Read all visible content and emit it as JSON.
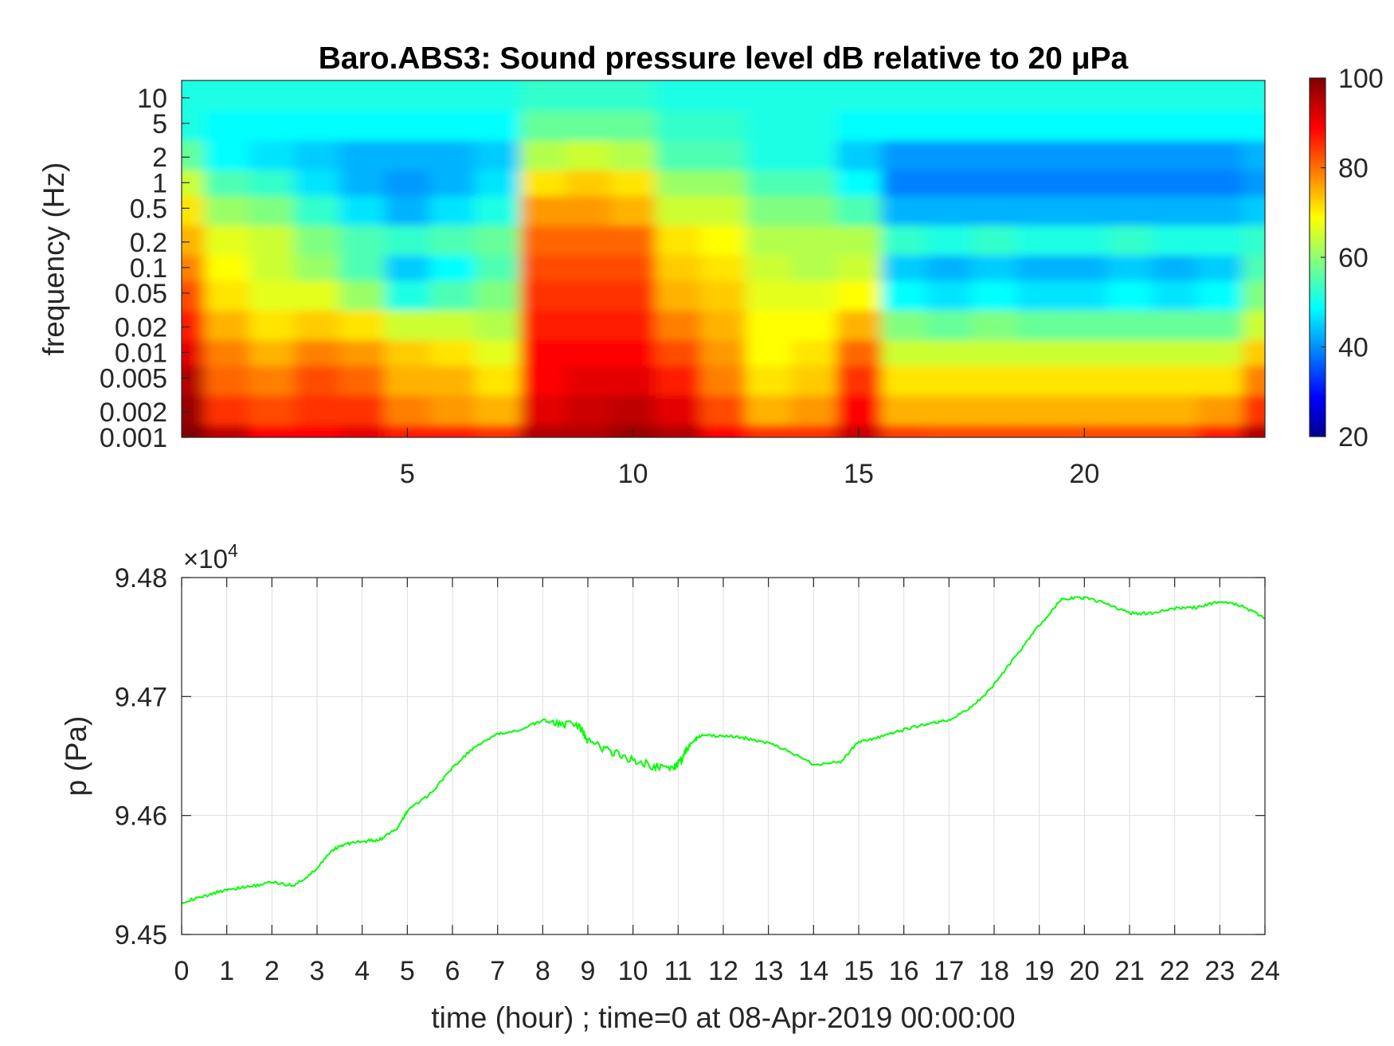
{
  "figure": {
    "title": "Baro.ABS3: Sound pressure level dB relative to 20 μPa"
  },
  "chart_data": [
    {
      "type": "heatmap",
      "title": "Baro.ABS3: Sound pressure level dB relative to 20 μPa",
      "ylabel": "frequency (Hz)",
      "y_scale": "log",
      "xlim": [
        0,
        24
      ],
      "x_ticks": [
        5,
        10,
        15,
        20
      ],
      "y_ticks": [
        {
          "value": 10,
          "label": "10"
        },
        {
          "value": 5,
          "label": "5"
        },
        {
          "value": 2,
          "label": "2"
        },
        {
          "value": 1,
          "label": "1"
        },
        {
          "value": 0.5,
          "label": "0.5"
        },
        {
          "value": 0.2,
          "label": "0.2"
        },
        {
          "value": 0.1,
          "label": "0.1"
        },
        {
          "value": 0.05,
          "label": "0.05"
        },
        {
          "value": 0.02,
          "label": "0.02"
        },
        {
          "value": 0.01,
          "label": "0.01"
        },
        {
          "value": 0.005,
          "label": "0.005"
        },
        {
          "value": 0.002,
          "label": "0.002"
        },
        {
          "value": 0.001,
          "label": "0.001"
        }
      ],
      "colorbar": {
        "min": 20,
        "max": 100,
        "ticks": [
          20,
          40,
          60,
          80,
          100
        ],
        "colormap": "jet"
      },
      "hours": [
        0,
        1,
        2,
        3,
        4,
        5,
        6,
        7,
        8,
        9,
        10,
        11,
        12,
        13,
        14,
        15,
        16,
        17,
        18,
        19,
        20,
        21,
        22,
        23,
        24
      ],
      "frequency_bands_hz": [
        0.001,
        0.002,
        0.005,
        0.01,
        0.02,
        0.05,
        0.1,
        0.2,
        0.5,
        1,
        2,
        5,
        10
      ],
      "approx_levels_db": [
        [
          100,
          95,
          90,
          90,
          92,
          88,
          88,
          86,
          96,
          96,
          98,
          96,
          90,
          86,
          86,
          94,
          85,
          84,
          84,
          84,
          84,
          84,
          84,
          88,
          96
        ],
        [
          98,
          86,
          84,
          86,
          86,
          80,
          78,
          76,
          92,
          94,
          95,
          92,
          84,
          76,
          78,
          90,
          76,
          76,
          76,
          76,
          76,
          76,
          76,
          78,
          86
        ],
        [
          96,
          82,
          80,
          84,
          82,
          76,
          76,
          72,
          90,
          92,
          92,
          88,
          80,
          72,
          74,
          86,
          72,
          72,
          72,
          72,
          72,
          72,
          72,
          72,
          80
        ],
        [
          92,
          80,
          76,
          80,
          78,
          74,
          72,
          68,
          90,
          90,
          90,
          84,
          78,
          70,
          72,
          82,
          66,
          66,
          66,
          66,
          66,
          66,
          66,
          66,
          74
        ],
        [
          88,
          76,
          72,
          74,
          72,
          66,
          66,
          64,
          88,
          88,
          88,
          80,
          76,
          70,
          70,
          76,
          60,
          58,
          60,
          58,
          58,
          58,
          58,
          58,
          66
        ],
        [
          84,
          72,
          68,
          68,
          62,
          52,
          56,
          60,
          86,
          86,
          86,
          76,
          74,
          68,
          68,
          70,
          50,
          48,
          50,
          48,
          48,
          50,
          48,
          50,
          60
        ],
        [
          80,
          70,
          66,
          62,
          56,
          46,
          50,
          56,
          84,
          84,
          84,
          74,
          72,
          66,
          64,
          66,
          46,
          44,
          46,
          44,
          44,
          46,
          44,
          46,
          56
        ],
        [
          76,
          68,
          66,
          60,
          56,
          54,
          56,
          58,
          82,
          82,
          82,
          72,
          70,
          64,
          64,
          64,
          54,
          52,
          54,
          52,
          52,
          54,
          52,
          52,
          54
        ],
        [
          72,
          62,
          60,
          54,
          48,
          44,
          48,
          52,
          78,
          78,
          76,
          66,
          66,
          60,
          60,
          56,
          44,
          44,
          44,
          44,
          44,
          44,
          44,
          44,
          46
        ],
        [
          66,
          56,
          54,
          48,
          44,
          42,
          44,
          48,
          72,
          74,
          72,
          62,
          62,
          56,
          56,
          50,
          40,
          40,
          40,
          40,
          40,
          40,
          40,
          40,
          42
        ],
        [
          58,
          50,
          48,
          46,
          44,
          44,
          44,
          46,
          64,
          66,
          64,
          56,
          56,
          52,
          52,
          46,
          42,
          42,
          42,
          42,
          42,
          42,
          42,
          42,
          44
        ],
        [
          52,
          50,
          50,
          50,
          50,
          50,
          50,
          50,
          58,
          58,
          58,
          54,
          54,
          52,
          52,
          50,
          50,
          50,
          50,
          50,
          50,
          50,
          50,
          50,
          50
        ],
        [
          52,
          52,
          52,
          52,
          52,
          52,
          52,
          52,
          54,
          54,
          54,
          52,
          52,
          52,
          52,
          52,
          52,
          52,
          52,
          52,
          52,
          52,
          52,
          52,
          52
        ]
      ]
    },
    {
      "type": "line",
      "xlabel": "time (hour) ; time=0 at 08-Apr-2019 00:00:00",
      "ylabel": "p (Pa)",
      "y_exponent_label": "×10",
      "y_exponent": "4",
      "xlim": [
        0,
        24
      ],
      "ylim": [
        94500,
        94800
      ],
      "x_ticks": [
        0,
        1,
        2,
        3,
        4,
        5,
        6,
        7,
        8,
        9,
        10,
        11,
        12,
        13,
        14,
        15,
        16,
        17,
        18,
        19,
        20,
        21,
        22,
        23,
        24
      ],
      "y_ticks": [
        {
          "value": 94500,
          "label": "9.45"
        },
        {
          "value": 94600,
          "label": "9.46"
        },
        {
          "value": 94700,
          "label": "9.47"
        },
        {
          "value": 94800,
          "label": "9.48"
        }
      ],
      "grid": true,
      "color": "#00ff00",
      "series": [
        {
          "x": [
            0,
            0.5,
            1.0,
            1.5,
            2.0,
            2.5,
            3.0,
            3.3,
            3.6,
            4.0,
            4.4,
            4.8,
            5.0,
            5.5,
            6.0,
            6.5,
            7.0,
            7.5,
            8.0,
            8.4,
            8.8,
            9.0,
            9.5,
            10.0,
            10.5,
            10.9,
            11.1,
            11.3,
            11.5,
            12.0,
            12.5,
            13.0,
            13.5,
            14.0,
            14.6,
            15.0,
            15.5,
            16.0,
            16.5,
            17.0,
            17.5,
            18.0,
            18.5,
            19.0,
            19.5,
            20.0,
            20.5,
            21.0,
            21.5,
            22.0,
            22.5,
            23.0,
            23.5,
            24.0
          ],
          "y": [
            94527,
            94532,
            94538,
            94540,
            94544,
            94541,
            94555,
            94570,
            94576,
            94578,
            94580,
            94590,
            94604,
            94618,
            94640,
            94658,
            94668,
            94672,
            94680,
            94677,
            94675,
            94663,
            94654,
            94647,
            94641,
            94640,
            94648,
            94662,
            94667,
            94667,
            94665,
            94661,
            94653,
            94643,
            94645,
            94662,
            94666,
            94672,
            94677,
            94680,
            94691,
            94710,
            94735,
            94760,
            94782,
            94783,
            94778,
            94770,
            94770,
            94774,
            94775,
            94780,
            94776,
            94766
          ]
        }
      ]
    }
  ]
}
